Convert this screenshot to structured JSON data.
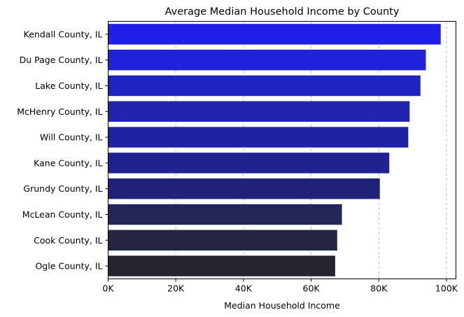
{
  "chart_data": {
    "type": "bar",
    "orientation": "horizontal",
    "title": "Average Median Household Income by County",
    "xlabel": "Median Household Income",
    "ylabel": "",
    "categories": [
      "Kendall County, IL",
      "Du Page County, IL",
      "Lake County, IL",
      "McHenry County, IL",
      "Will County, IL",
      "Kane County, IL",
      "Grundy County, IL",
      "McLean County, IL",
      "Cook County, IL",
      "Ogle County, IL"
    ],
    "values": [
      98300,
      93900,
      92300,
      89100,
      88700,
      83100,
      80300,
      69100,
      67700,
      67100
    ],
    "colors": [
      "#1f1fe8",
      "#1f22d8",
      "#1f23c4",
      "#1f23ae",
      "#1f22a4",
      "#1f2290",
      "#1f2277",
      "#242659",
      "#252645",
      "#24252f"
    ],
    "xlim": [
      0,
      102800
    ],
    "xticks": [
      0,
      20000,
      40000,
      60000,
      80000,
      100000
    ],
    "xtick_labels": [
      "0K",
      "20K",
      "40K",
      "60K",
      "80K",
      "100K"
    ],
    "grid": "x-axis dashed",
    "legend": "none"
  }
}
